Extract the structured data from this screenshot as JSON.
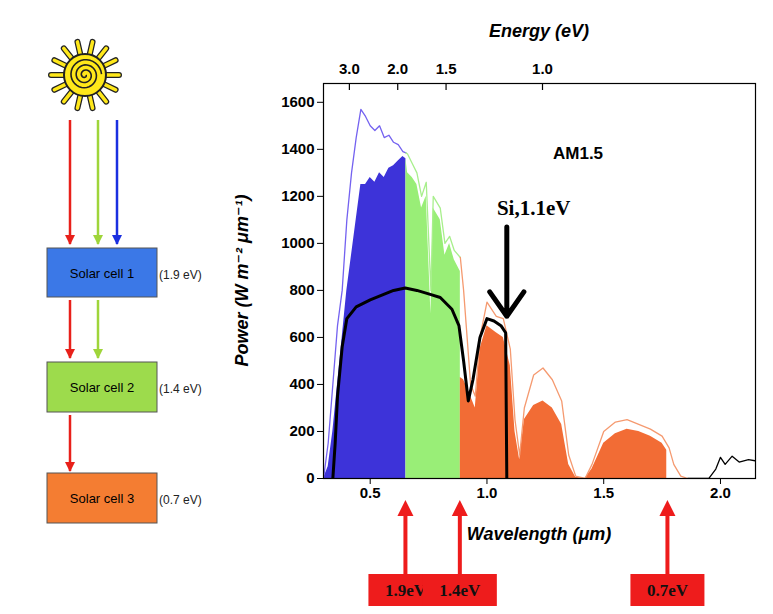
{
  "chart_data": {
    "type": "line",
    "x_label": "Wavelength (μm)",
    "y_label": "Power (W m⁻² μm⁻¹)",
    "x2_label": "Energy (eV)",
    "xlim": [
      0.3,
      2.15
    ],
    "xticks": [
      0.5,
      {
        "value": 1,
        "label": "1.0"
      },
      1.5,
      {
        "value": 2,
        "label": "2.0"
      }
    ],
    "x2ticks": [
      {
        "value": 0.413,
        "label": "3.0"
      },
      {
        "value": 0.62,
        "label": "2.0"
      },
      {
        "value": 0.827,
        "label": "1.5"
      },
      {
        "value": 1.24,
        "label": "1.0"
      }
    ],
    "ylim": [
      0,
      1680
    ],
    "yticks": [
      0,
      200,
      400,
      600,
      800,
      1000,
      1200,
      1400,
      1600
    ],
    "grid": false,
    "series": [
      {
        "type": "area",
        "color": "#3d33d9",
        "x": [
          0.3,
          0.32,
          0.34,
          0.36,
          0.38,
          0.4,
          0.42,
          0.44,
          0.46,
          0.48,
          0.5,
          0.52,
          0.54,
          0.56,
          0.58,
          0.6,
          0.62,
          0.64,
          0.653
        ],
        "values": [
          0,
          50,
          200,
          400,
          600,
          800,
          950,
          1100,
          1250,
          1250,
          1280,
          1260,
          1300,
          1280,
          1320,
          1330,
          1350,
          1370,
          1360
        ]
      },
      {
        "type": "area",
        "color": "#99ee77",
        "x": [
          0.653,
          0.66,
          0.68,
          0.7,
          0.72,
          0.74,
          0.76,
          0.77,
          0.8,
          0.82,
          0.84,
          0.86,
          0.886
        ],
        "values": [
          1360,
          1300,
          1280,
          1250,
          1150,
          1200,
          700,
          1150,
          1100,
          950,
          1000,
          930,
          880
        ]
      },
      {
        "type": "area",
        "color": "#f26c35",
        "x": [
          0.886,
          0.9,
          0.93,
          0.95,
          0.97,
          1.0,
          1.04,
          1.07,
          1.1,
          1.12,
          1.14,
          1.16,
          1.2,
          1.24,
          1.28,
          1.32,
          1.35,
          1.38,
          1.42,
          1.45,
          1.5,
          1.55,
          1.6,
          1.65,
          1.7,
          1.75,
          1.77
        ],
        "values": [
          430,
          420,
          350,
          300,
          550,
          650,
          620,
          600,
          480,
          200,
          80,
          250,
          310,
          330,
          300,
          230,
          60,
          5,
          0,
          40,
          150,
          190,
          210,
          200,
          180,
          150,
          120
        ]
      },
      {
        "type": "line",
        "line_style": "thin",
        "color": "#7462f0",
        "x": [
          0.3,
          0.32,
          0.34,
          0.36,
          0.38,
          0.4,
          0.42,
          0.44,
          0.46,
          0.48,
          0.5,
          0.52,
          0.54,
          0.56,
          0.58,
          0.6,
          0.62,
          0.64,
          0.653
        ],
        "values": [
          0,
          150,
          400,
          650,
          800,
          1100,
          1300,
          1450,
          1570,
          1540,
          1500,
          1480,
          1500,
          1450,
          1460,
          1430,
          1420,
          1390,
          1385
        ]
      },
      {
        "type": "line",
        "line_style": "thin",
        "color": "#a8ef8c",
        "x": [
          0.653,
          0.66,
          0.68,
          0.7,
          0.72,
          0.74,
          0.76,
          0.77,
          0.8,
          0.82,
          0.84,
          0.86,
          0.886
        ],
        "values": [
          1385,
          1380,
          1340,
          1300,
          1200,
          1260,
          800,
          1200,
          1150,
          1000,
          1030,
          970,
          940
        ]
      },
      {
        "type": "line",
        "line_style": "thin",
        "color": "#f59a70",
        "x": [
          0.886,
          0.9,
          0.93,
          0.95,
          0.97,
          1.0,
          1.04,
          1.07,
          1.1,
          1.12,
          1.14,
          1.16,
          1.2,
          1.24,
          1.28,
          1.32,
          1.35,
          1.38,
          1.42,
          1.45,
          1.5,
          1.55,
          1.6,
          1.65,
          1.7,
          1.75,
          1.78,
          1.8,
          1.83,
          1.86
        ],
        "values": [
          940,
          800,
          400,
          350,
          600,
          750,
          690,
          680,
          550,
          250,
          100,
          300,
          440,
          470,
          420,
          330,
          100,
          10,
          0,
          60,
          200,
          240,
          250,
          230,
          210,
          180,
          130,
          60,
          10,
          0
        ]
      },
      {
        "type": "line",
        "line_style": "thin",
        "color": "#000000",
        "x": [
          1.86,
          1.95,
          1.98,
          2.0,
          2.02,
          2.05,
          2.08,
          2.12,
          2.15
        ],
        "values": [
          0,
          0,
          40,
          90,
          60,
          95,
          70,
          80,
          75
        ]
      },
      {
        "type": "line",
        "line_style": "thick",
        "color": "#000000",
        "x": [
          0.34,
          0.35,
          0.36,
          0.38,
          0.4,
          0.44,
          0.5,
          0.55,
          0.6,
          0.65,
          0.7,
          0.75,
          0.8,
          0.85,
          0.88,
          0.9,
          0.92,
          0.94,
          0.97,
          1.0,
          1.03,
          1.06,
          1.08,
          1.085
        ],
        "values": [
          0,
          150,
          350,
          560,
          680,
          730,
          760,
          780,
          800,
          810,
          800,
          785,
          770,
          720,
          650,
          500,
          330,
          420,
          600,
          680,
          670,
          650,
          620,
          0
        ]
      }
    ],
    "annotations": [
      {
        "text": "AM1.5",
        "x": 1.39,
        "y": 1380
      },
      {
        "text": "Si,1.1eV",
        "x": 1.2,
        "y": 1150,
        "arrow": {
          "x": 1.085,
          "y1": 1070,
          "y2": 690
        }
      }
    ],
    "markers": [
      {
        "label": "1.9eV",
        "x": 0.653,
        "color": "#ee1c1c"
      },
      {
        "label": "1.4eV",
        "x": 0.886,
        "color": "#ee1c1c"
      },
      {
        "label": "0.7eV",
        "x": 1.775,
        "color": "#ee1c1c"
      }
    ]
  },
  "diagram": {
    "cells": [
      {
        "label": "Solar cell 1",
        "band_gap": "(1.9 eV)",
        "color": "#3b78e7"
      },
      {
        "label": "Solar cell 2",
        "band_gap": "(1.4 eV)",
        "color": "#9ddb4c"
      },
      {
        "label": "Solar cell 3",
        "band_gap": "(0.7 eV)",
        "color": "#f47d32"
      }
    ]
  }
}
